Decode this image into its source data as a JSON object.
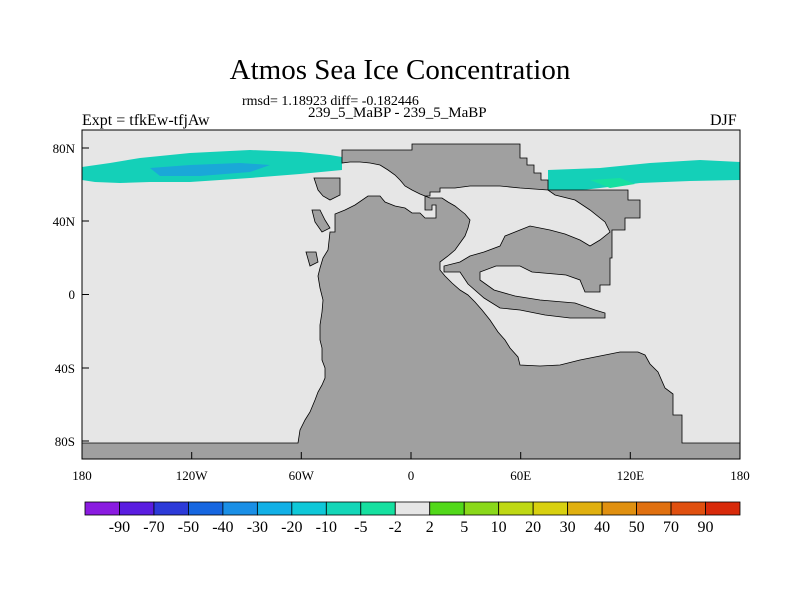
{
  "title": "Atmos Sea Ice Concentration",
  "stats": "rmsd= 1.18923 diff= -0.182446",
  "subtitle": "239_5_MaBP - 239_5_MaBP",
  "left_label": "Expt = tfkEw-tfjAw",
  "right_label": "DJF",
  "map": {
    "projection": "cylindrical equidistant",
    "lon_range": [
      -180,
      180
    ],
    "lat_range": [
      -90,
      90
    ],
    "land_color": "#a0a0a0",
    "ocean_color": "#e6e6e6",
    "x_ticks": [
      "180",
      "120W",
      "60W",
      "0",
      "60E",
      "120E",
      "180"
    ],
    "y_ticks": [
      "80N",
      "40N",
      "0",
      "40S",
      "80S"
    ]
  },
  "colorbar": {
    "labels": [
      "-90",
      "-70",
      "-50",
      "-40",
      "-30",
      "-20",
      "-10",
      "-5",
      "-2",
      "2",
      "5",
      "10",
      "20",
      "30",
      "40",
      "50",
      "70",
      "90"
    ],
    "colors": [
      "#8a1be0",
      "#5a1de0",
      "#2c3ad8",
      "#1666e0",
      "#1a8fe6",
      "#12b0e6",
      "#0fc8d8",
      "#14d6b8",
      "#16e0a0",
      "#e6e6e6",
      "#52d81a",
      "#8ad81a",
      "#bfd814",
      "#d8d010",
      "#e0b010",
      "#e09010",
      "#e07010",
      "#e05010",
      "#d82a0a"
    ]
  }
}
